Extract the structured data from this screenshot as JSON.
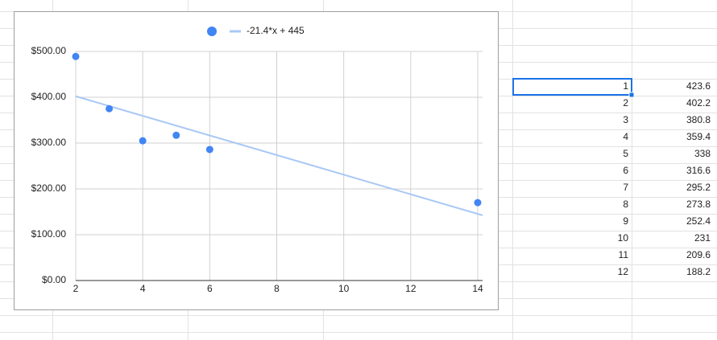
{
  "chart_data": {
    "type": "scatter",
    "color": "#4285f4",
    "x": [
      2,
      3,
      4,
      5,
      6,
      14
    ],
    "values": [
      489,
      375,
      305,
      317,
      286,
      170
    ],
    "trendline": {
      "label": "-21.4*x + 445",
      "slope": -21.4,
      "intercept": 445,
      "color": "#a9c8f5"
    },
    "xlim": [
      2,
      14
    ],
    "xticks": [
      2,
      4,
      6,
      8,
      10,
      12,
      14
    ],
    "ylim": [
      0,
      500
    ],
    "yticks": [
      {
        "value": 0,
        "label": "$0.00"
      },
      {
        "value": 100,
        "label": "$100.00"
      },
      {
        "value": 200,
        "label": "$200.00"
      },
      {
        "value": 300,
        "label": "$300.00"
      },
      {
        "value": 400,
        "label": "$400.00"
      },
      {
        "value": 500,
        "label": "$500.00"
      }
    ],
    "grid": true,
    "legend": "top"
  },
  "table": {
    "rows": [
      [
        1,
        423.6
      ],
      [
        2,
        402.2
      ],
      [
        3,
        380.8
      ],
      [
        4,
        359.4
      ],
      [
        5,
        338
      ],
      [
        6,
        316.6
      ],
      [
        7,
        295.2
      ],
      [
        8,
        273.8
      ],
      [
        9,
        252.4
      ],
      [
        10,
        231
      ],
      [
        11,
        209.6
      ],
      [
        12,
        188.2
      ]
    ]
  }
}
